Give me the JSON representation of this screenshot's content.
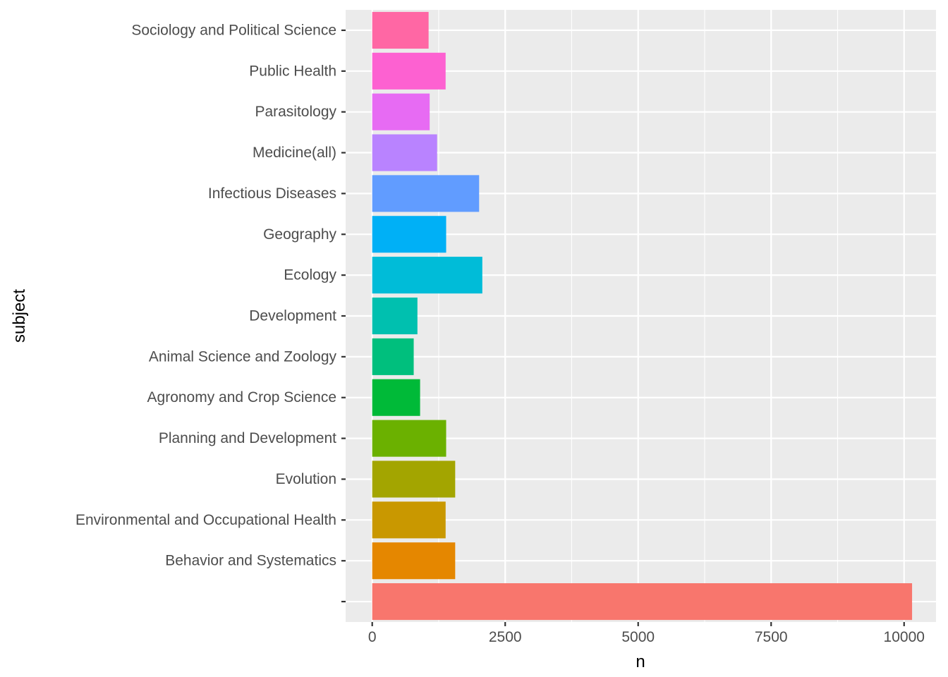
{
  "chart_data": {
    "type": "bar",
    "orientation": "horizontal",
    "title": "",
    "xlabel": "n",
    "ylabel": "subject",
    "categories": [
      "",
      "Behavior and Systematics",
      "Environmental and Occupational Health",
      "Evolution",
      "Planning and Development",
      "Agronomy and Crop Science",
      "Animal Science and Zoology",
      "Development",
      "Ecology",
      "Geography",
      "Infectious Diseases",
      "Medicine(all)",
      "Parasitology",
      "Public Health",
      "Sociology and Political Science"
    ],
    "values": [
      10150,
      1560,
      1380,
      1560,
      1390,
      900,
      780,
      850,
      2070,
      1390,
      2010,
      1220,
      1080,
      1380,
      1060
    ],
    "colors": [
      "#F8766D",
      "#E58700",
      "#C99800",
      "#A3A500",
      "#6BB100",
      "#00BA38",
      "#00BF7D",
      "#00C0AF",
      "#00BCD8",
      "#00B0F6",
      "#619CFF",
      "#B983FF",
      "#E76BF3",
      "#FD61D1",
      "#FF67A4"
    ],
    "xlim": [
      -500,
      10600
    ],
    "xticks": [
      0,
      2500,
      5000,
      7500,
      10000
    ],
    "xtick_labels": [
      "0",
      "2500",
      "5000",
      "7500",
      "10000"
    ],
    "grid": true,
    "legend": "none",
    "panel_background": "#EBEBEB",
    "gridline_color": "#FFFFFF"
  }
}
